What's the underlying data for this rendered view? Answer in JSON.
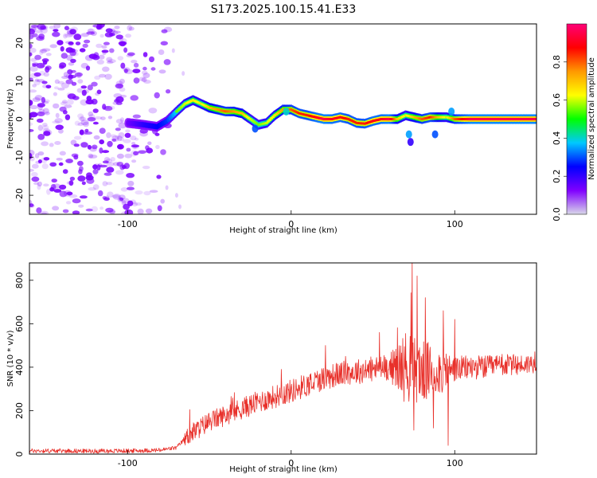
{
  "title": "S173.2025.100.15.41.E33",
  "colors": {
    "snr_line": "#e8302a",
    "ridge_core": "#ff1a1a",
    "scatter": "#7a00ff",
    "colorbar_stops": [
      "#d8d8e8",
      "#8000ff",
      "#0000ff",
      "#00c8ff",
      "#00ff00",
      "#ffff00",
      "#ff9900",
      "#ff0000",
      "#ff0077"
    ]
  },
  "chart_data": [
    {
      "type": "heatmap",
      "xlabel": "Height of straight line (km)",
      "ylabel": "Frequency (Hz)",
      "xlim": [
        -160,
        150
      ],
      "ylim": [
        -25,
        25
      ],
      "xticks": [
        {
          "value": -100,
          "label": "-100"
        },
        {
          "value": 0,
          "label": "0"
        },
        {
          "value": 100,
          "label": "100"
        }
      ],
      "yticks": [
        {
          "value": 20,
          "label": "20"
        },
        {
          "value": 10,
          "label": "10"
        },
        {
          "value": 0,
          "label": "0"
        },
        {
          "value": -10,
          "label": "-10"
        },
        {
          "value": -20,
          "label": "-20"
        }
      ],
      "colorbar": {
        "label": "Normalized spectral amplitude",
        "range": [
          0,
          1
        ],
        "ticks": [
          {
            "value": 0.0,
            "label": "0.0"
          },
          {
            "value": 0.2,
            "label": "0.2"
          },
          {
            "value": 0.4,
            "label": "0.4"
          },
          {
            "value": 0.6,
            "label": "0.6"
          },
          {
            "value": 0.8,
            "label": "0.8"
          }
        ]
      },
      "ridge": {
        "x": [
          -100,
          -90,
          -82,
          -76,
          -70,
          -65,
          -60,
          -55,
          -50,
          -45,
          -40,
          -35,
          -30,
          -25,
          -20,
          -15,
          -10,
          -5,
          0,
          5,
          10,
          15,
          20,
          25,
          30,
          35,
          40,
          45,
          50,
          55,
          60,
          65,
          70,
          75,
          80,
          85,
          90,
          95,
          100,
          110,
          120,
          130,
          140,
          150
        ],
        "freq": [
          -1,
          -1.5,
          -2,
          -0.5,
          2,
          4,
          5,
          4,
          3,
          2.5,
          2,
          2,
          1.5,
          0,
          -1.5,
          -1,
          1,
          2.5,
          2.5,
          1.5,
          1,
          0.5,
          0,
          0,
          0.5,
          0,
          -1,
          -1.2,
          -0.5,
          0,
          0,
          0,
          1,
          0.5,
          0,
          0.5,
          0.5,
          0.5,
          0,
          0,
          0,
          0,
          0,
          0
        ],
        "amplitude": [
          0.2,
          0.3,
          0.35,
          0.4,
          0.55,
          0.6,
          0.65,
          0.6,
          0.7,
          0.75,
          0.8,
          0.75,
          0.7,
          0.6,
          0.55,
          0.6,
          0.65,
          0.75,
          0.8,
          0.85,
          0.85,
          0.9,
          0.95,
          0.9,
          0.9,
          0.85,
          0.85,
          0.85,
          0.9,
          0.9,
          0.95,
          0.7,
          0.6,
          0.7,
          0.8,
          0.85,
          0.7,
          0.6,
          0.8,
          0.95,
          0.95,
          0.95,
          0.95,
          0.95
        ]
      },
      "noise": {
        "x_range": [
          -160,
          -75
        ],
        "freq_range": [
          -25,
          25
        ],
        "amplitude_range": [
          0.0,
          0.15
        ]
      }
    },
    {
      "type": "line",
      "xlabel": "Height of straight line (km)",
      "ylabel": "SNR (10 * v/v)",
      "xlim": [
        -160,
        150
      ],
      "ylim": [
        0,
        880
      ],
      "xticks": [
        {
          "value": -100,
          "label": "-100"
        },
        {
          "value": 0,
          "label": "0"
        },
        {
          "value": 100,
          "label": "100"
        }
      ],
      "yticks": [
        {
          "value": 0,
          "label": "0"
        },
        {
          "value": 200,
          "label": "200"
        },
        {
          "value": 400,
          "label": "400"
        },
        {
          "value": 600,
          "label": "600"
        },
        {
          "value": 800,
          "label": "800"
        }
      ],
      "trend": {
        "x": [
          -160,
          -140,
          -120,
          -100,
          -80,
          -70,
          -65,
          -60,
          -50,
          -40,
          -30,
          -20,
          -10,
          0,
          10,
          20,
          30,
          40,
          50,
          60,
          70,
          80,
          90,
          100,
          110,
          120,
          130,
          140,
          150
        ],
        "y": [
          15,
          15,
          14,
          15,
          18,
          30,
          70,
          100,
          150,
          180,
          210,
          240,
          265,
          290,
          320,
          350,
          370,
          380,
          390,
          400,
          400,
          380,
          380,
          390,
          400,
          400,
          410,
          410,
          420
        ]
      },
      "noise_amplitude": {
        "x": [
          -160,
          -66,
          -64,
          0,
          60,
          70,
          90,
          100,
          150
        ],
        "y": [
          10,
          10,
          45,
          55,
          60,
          170,
          120,
          60,
          45
        ]
      },
      "spikes": [
        {
          "x": -62,
          "y": 205
        },
        {
          "x": -6,
          "y": 390
        },
        {
          "x": 21,
          "y": 500
        },
        {
          "x": 54,
          "y": 560
        },
        {
          "x": 74,
          "y": 880
        },
        {
          "x": 75,
          "y": 110
        },
        {
          "x": 77,
          "y": 820
        },
        {
          "x": 82,
          "y": 720
        },
        {
          "x": 87,
          "y": 120
        },
        {
          "x": 93,
          "y": 660
        },
        {
          "x": 96,
          "y": 40
        },
        {
          "x": 100,
          "y": 620
        }
      ]
    }
  ]
}
